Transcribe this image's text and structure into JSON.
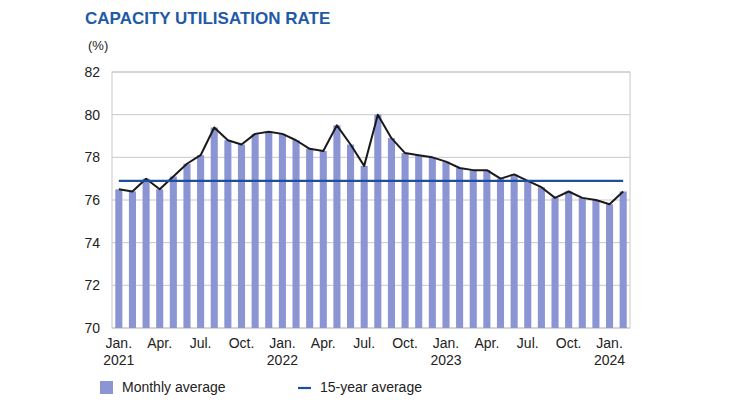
{
  "chart_data": {
    "type": "bar",
    "title": "CAPACITY UTILISATION RATE",
    "y_label": "(%)",
    "categories": [
      "Jan. 2021",
      null,
      null,
      "Apr.",
      null,
      null,
      "Jul.",
      null,
      null,
      "Oct.",
      null,
      null,
      "Jan. 2022",
      null,
      null,
      "Apr.",
      null,
      null,
      "Jul.",
      null,
      null,
      "Oct.",
      null,
      null,
      "Jan. 2023",
      null,
      null,
      "Apr.",
      null,
      null,
      "Jul.",
      null,
      null,
      "Oct.",
      null,
      null,
      "Jan. 2024",
      null
    ],
    "series": [
      {
        "name": "Monthly average",
        "type": "bar",
        "color": "#8b95d3",
        "line_style": "solid",
        "values": [
          76.5,
          76.4,
          77.0,
          76.5,
          77.1,
          77.7,
          78.1,
          79.4,
          78.8,
          78.6,
          79.1,
          79.2,
          79.1,
          78.8,
          78.4,
          78.3,
          79.5,
          78.6,
          77.6,
          80.0,
          78.9,
          78.2,
          78.1,
          78.0,
          77.8,
          77.5,
          77.4,
          77.4,
          77.0,
          77.2,
          76.9,
          76.6,
          76.1,
          76.4,
          76.1,
          76.0,
          75.8,
          76.4
        ]
      },
      {
        "name": "15-year average",
        "type": "line",
        "color": "#1d4f9c",
        "values": [
          76.9,
          76.9,
          76.9,
          76.9,
          76.9,
          76.9,
          76.9,
          76.9,
          76.9,
          76.9,
          76.9,
          76.9,
          76.9,
          76.9,
          76.9,
          76.9,
          76.9,
          76.9,
          76.9,
          76.9,
          76.9,
          76.9,
          76.9,
          76.9,
          76.9,
          76.9,
          76.9,
          76.9,
          76.9,
          76.9,
          76.9,
          76.9,
          76.9,
          76.9,
          76.9,
          76.9,
          76.9,
          76.9
        ]
      }
    ],
    "ylim": [
      70,
      82
    ],
    "yticks": [
      70,
      72,
      74,
      76,
      78,
      80,
      82
    ],
    "grid": true,
    "legend": "bottom"
  }
}
